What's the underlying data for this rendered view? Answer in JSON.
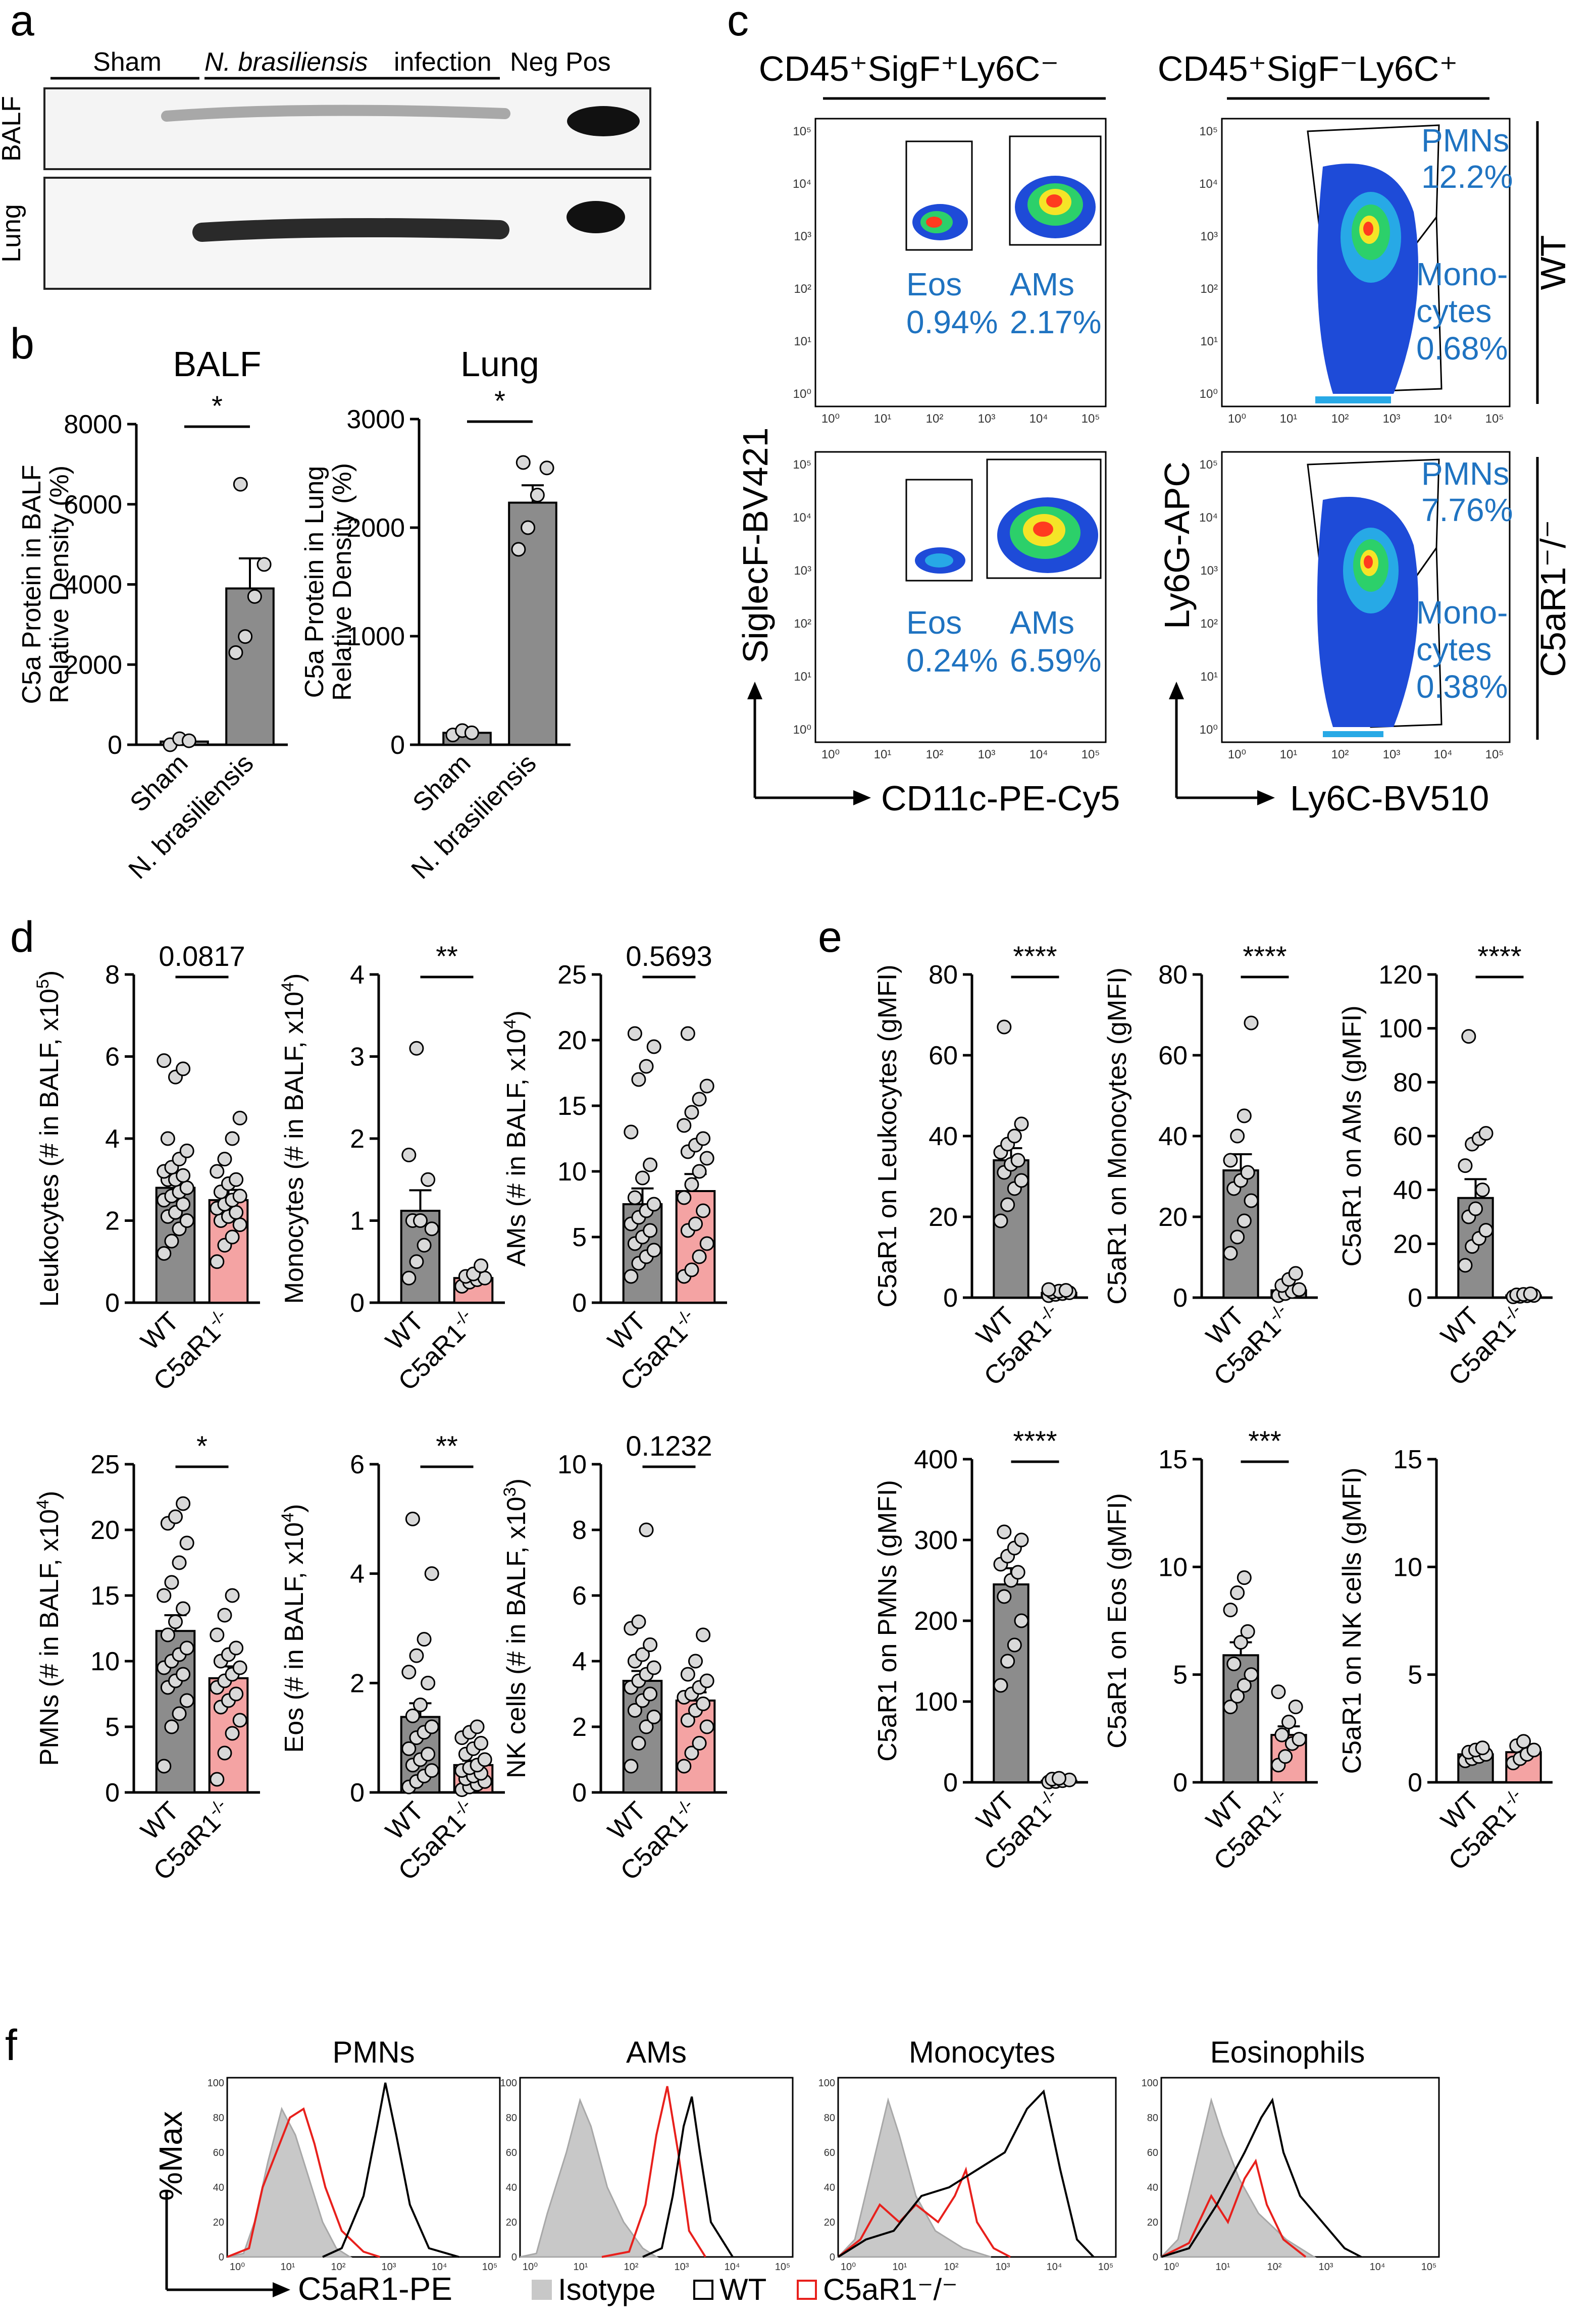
{
  "panels": {
    "a": "a",
    "b": "b",
    "c": "c",
    "d": "d",
    "e": "e",
    "f": "f"
  },
  "panel_a": {
    "groups": [
      "Sham",
      "N. brasiliensis",
      "infection",
      "Neg",
      "Pos"
    ],
    "rows": [
      "BALF",
      "Lung"
    ]
  },
  "chart_data": [
    {
      "id": "b-balf",
      "type": "bar",
      "title": "BALF",
      "categories": [
        "Sham",
        "N. brasiliensis"
      ],
      "values": [
        80,
        3900
      ],
      "errors": [
        60,
        750
      ],
      "points": [
        [
          0,
          150,
          100
        ],
        [
          2300,
          2700,
          3700,
          4500,
          6500
        ]
      ],
      "ylabel_lines": [
        "C5a Protein in BALF",
        "Relative Density (%)"
      ],
      "ylim": [
        0,
        8000
      ],
      "yticks": [
        "0",
        "2000",
        "4000",
        "6000",
        "8000"
      ],
      "sig": "*",
      "bar_colors": [
        "#8c8c8c",
        "#8c8c8c"
      ]
    },
    {
      "id": "b-lung",
      "type": "bar",
      "title": "Lung",
      "categories": [
        "Sham",
        "N. brasiliensis"
      ],
      "values": [
        110,
        2230
      ],
      "errors": [
        20,
        160
      ],
      "points": [
        [
          90,
          130,
          110
        ],
        [
          1800,
          2000,
          2300,
          2550,
          2600
        ]
      ],
      "ylabel_lines": [
        "C5a Protein in Lung",
        "Relative Density (%)"
      ],
      "ylim": [
        0,
        3000
      ],
      "yticks": [
        "0",
        "1000",
        "2000",
        "3000"
      ],
      "sig": "*",
      "bar_colors": [
        "#8c8c8c",
        "#8c8c8c"
      ]
    },
    {
      "id": "d-leuk",
      "type": "bar",
      "categories": [
        "WT",
        "C5aR1-/-"
      ],
      "values": [
        2.8,
        2.5
      ],
      "errors": [
        0.3,
        0.25
      ],
      "points": [
        [
          1.2,
          1.5,
          1.8,
          2.0,
          2.1,
          2.2,
          2.4,
          2.5,
          2.6,
          2.7,
          2.8,
          3.0,
          3.0,
          3.1,
          3.2,
          3.3,
          3.5,
          3.7,
          4.0,
          5.5,
          5.7,
          5.9
        ],
        [
          1.0,
          1.4,
          1.6,
          1.9,
          2.0,
          2.1,
          2.2,
          2.3,
          2.4,
          2.5,
          2.6,
          2.7,
          2.9,
          3.0,
          3.2,
          3.5,
          4.0,
          4.5
        ]
      ],
      "ylabel": "Leukocytes (# in BALF, x10",
      "ylabel_sup": "5",
      "ylabel_end": ")",
      "ylim": [
        0,
        8
      ],
      "yticks": [
        "0",
        "2",
        "4",
        "6",
        "8"
      ],
      "sig": "0.0817",
      "bar_colors": [
        "#8c8c8c",
        "#f4a3a3"
      ]
    },
    {
      "id": "d-mono",
      "type": "bar",
      "categories": [
        "WT",
        "C5aR1-/-"
      ],
      "values": [
        1.12,
        0.3
      ],
      "errors": [
        0.25,
        0.05
      ],
      "points": [
        [
          0.3,
          0.5,
          0.7,
          0.9,
          1.0,
          1.0,
          1.5,
          1.8,
          3.1
        ],
        [
          0.2,
          0.25,
          0.28,
          0.3,
          0.32,
          0.35,
          0.45
        ]
      ],
      "ylabel": "Monocytes (# in BALF, x10",
      "ylabel_sup": "4",
      "ylabel_end": ")",
      "ylim": [
        0,
        4
      ],
      "yticks": [
        "0",
        "1",
        "2",
        "3",
        "4"
      ],
      "sig": "**",
      "bar_colors": [
        "#8c8c8c",
        "#f4a3a3"
      ]
    },
    {
      "id": "d-ams",
      "type": "bar",
      "categories": [
        "WT",
        "C5aR1-/-"
      ],
      "values": [
        7.5,
        8.5
      ],
      "errors": [
        1.2,
        1.3
      ],
      "points": [
        [
          2.0,
          3.0,
          3.5,
          4.0,
          4.5,
          5.0,
          5.5,
          6.0,
          6.5,
          7.0,
          7.5,
          8.0,
          9.5,
          10.5,
          13.0,
          17.0,
          18.0,
          19.5,
          20.5
        ],
        [
          2.0,
          2.5,
          3.5,
          4.5,
          5.5,
          6.0,
          7.0,
          8.0,
          9.0,
          10.0,
          11.0,
          11.5,
          12.0,
          12.5,
          13.5,
          14.5,
          15.5,
          16.5,
          20.5
        ]
      ],
      "ylabel": "AMs (# in BALF, x10",
      "ylabel_sup": "4",
      "ylabel_end": ")",
      "ylim": [
        0,
        25
      ],
      "yticks": [
        "0",
        "5",
        "10",
        "15",
        "20",
        "25"
      ],
      "sig": "0.5693",
      "bar_colors": [
        "#8c8c8c",
        "#f4a3a3"
      ]
    },
    {
      "id": "d-pmn",
      "type": "bar",
      "categories": [
        "WT",
        "C5aR1-/-"
      ],
      "values": [
        12.3,
        8.7
      ],
      "errors": [
        1.2,
        0.9
      ],
      "points": [
        [
          2.0,
          5.0,
          6.0,
          7.0,
          8.0,
          8.5,
          9.0,
          9.5,
          10.0,
          10.5,
          11.0,
          12.0,
          13.0,
          14.0,
          15.0,
          16.0,
          17.5,
          19.0,
          20.5,
          21.0,
          22.0
        ],
        [
          1.0,
          3.0,
          4.5,
          5.5,
          6.5,
          7.0,
          7.5,
          8.0,
          8.5,
          9.0,
          9.5,
          10.0,
          10.5,
          11.0,
          12.0,
          13.5,
          15.0
        ]
      ],
      "ylabel": "PMNs (# in BALF, x10",
      "ylabel_sup": "4",
      "ylabel_end": ")",
      "ylim": [
        0,
        25
      ],
      "yticks": [
        "0",
        "5",
        "10",
        "15",
        "20",
        "25"
      ],
      "sig": "*",
      "bar_colors": [
        "#8c8c8c",
        "#f4a3a3"
      ]
    },
    {
      "id": "d-eos",
      "type": "bar",
      "categories": [
        "WT",
        "C5aR1-/-"
      ],
      "values": [
        1.38,
        0.5
      ],
      "errors": [
        0.25,
        0.08
      ],
      "points": [
        [
          0.1,
          0.2,
          0.3,
          0.4,
          0.5,
          0.6,
          0.7,
          0.8,
          1.0,
          1.1,
          1.2,
          1.4,
          1.6,
          2.0,
          2.2,
          2.5,
          2.8,
          4.0,
          5.0
        ],
        [
          0.05,
          0.1,
          0.15,
          0.2,
          0.25,
          0.3,
          0.35,
          0.4,
          0.45,
          0.5,
          0.6,
          0.7,
          0.8,
          0.9,
          1.0,
          1.1,
          1.2
        ]
      ],
      "ylabel": "Eos (# in BALF, x10",
      "ylabel_sup": "4",
      "ylabel_end": ")",
      "ylim": [
        0,
        6
      ],
      "yticks": [
        "0",
        "2",
        "4",
        "6"
      ],
      "sig": "**",
      "bar_colors": [
        "#8c8c8c",
        "#f4a3a3"
      ]
    },
    {
      "id": "d-nk",
      "type": "bar",
      "categories": [
        "WT",
        "C5aR1-/-"
      ],
      "values": [
        3.4,
        2.8
      ],
      "errors": [
        0.3,
        0.25
      ],
      "points": [
        [
          0.8,
          1.5,
          2.0,
          2.3,
          2.5,
          2.8,
          3.0,
          3.2,
          3.4,
          3.6,
          3.8,
          4.0,
          4.2,
          4.5,
          5.0,
          5.2,
          8.0
        ],
        [
          0.8,
          1.2,
          1.5,
          2.0,
          2.2,
          2.5,
          2.7,
          2.9,
          3.0,
          3.2,
          3.4,
          3.6,
          4.0,
          4.8
        ]
      ],
      "ylabel": "NK cells (# in BALF, x10",
      "ylabel_sup": "3",
      "ylabel_end": ")",
      "ylim": [
        0,
        10
      ],
      "yticks": [
        "0",
        "2",
        "4",
        "6",
        "8",
        "10"
      ],
      "sig": "0.1232",
      "bar_colors": [
        "#8c8c8c",
        "#f4a3a3"
      ]
    },
    {
      "id": "e-leuk",
      "type": "bar",
      "categories": [
        "WT",
        "C5aR1-/-"
      ],
      "values": [
        34,
        1.2
      ],
      "errors": [
        3,
        0.3
      ],
      "points": [
        [
          19,
          23,
          27,
          29,
          31,
          33,
          34,
          36,
          38,
          40,
          43,
          67
        ],
        [
          0.5,
          0.8,
          1.0,
          1.2,
          1.4,
          1.6,
          1.8,
          2.0
        ]
      ],
      "ylabel": "C5aR1 on Leukocytes (gMFI)",
      "ylim": [
        0,
        80
      ],
      "yticks": [
        "0",
        "20",
        "40",
        "60",
        "80"
      ],
      "sig": "****",
      "bar_colors": [
        "#8c8c8c",
        "#8c8c8c"
      ]
    },
    {
      "id": "e-mono",
      "type": "bar",
      "categories": [
        "WT",
        "C5aR1-/-"
      ],
      "values": [
        31.5,
        1.8
      ],
      "errors": [
        4,
        0.4
      ],
      "points": [
        [
          11,
          15,
          19,
          24,
          27,
          29,
          31,
          34,
          40,
          45,
          68
        ],
        [
          0.5,
          1.0,
          1.5,
          2.0,
          3.0,
          4.5,
          6.0
        ]
      ],
      "ylabel": "C5aR1 on Monocytes (gMFI)",
      "ylim": [
        0,
        80
      ],
      "yticks": [
        "0",
        "20",
        "40",
        "60",
        "80"
      ],
      "sig": "****",
      "bar_colors": [
        "#8c8c8c",
        "#8c8c8c"
      ]
    },
    {
      "id": "e-ams",
      "type": "bar",
      "categories": [
        "WT",
        "C5aR1-/-"
      ],
      "values": [
        37,
        0.8
      ],
      "errors": [
        7,
        0.2
      ],
      "points": [
        [
          12,
          19,
          22,
          25,
          30,
          33,
          40,
          49,
          57,
          59,
          61,
          97
        ],
        [
          0.3,
          0.5,
          0.7,
          0.8,
          1.0,
          1.2,
          1.4
        ]
      ],
      "ylabel": "C5aR1 on AMs (gMFI)",
      "ylim": [
        0,
        120
      ],
      "yticks": [
        "0",
        "20",
        "40",
        "60",
        "80",
        "100",
        "120"
      ],
      "sig": "****",
      "bar_colors": [
        "#8c8c8c",
        "#8c8c8c"
      ]
    },
    {
      "id": "e-pmn",
      "type": "bar",
      "categories": [
        "WT",
        "C5aR1-/-"
      ],
      "values": [
        245,
        2
      ],
      "errors": [
        20,
        1
      ],
      "points": [
        [
          120,
          150,
          170,
          200,
          230,
          250,
          260,
          270,
          280,
          290,
          300,
          310
        ],
        [
          0.5,
          1,
          2,
          3,
          4,
          5
        ]
      ],
      "ylabel": "C5aR1 on PMNs (gMFI)",
      "ylim": [
        0,
        400
      ],
      "yticks": [
        "0",
        "100",
        "200",
        "300",
        "400"
      ],
      "sig": "****",
      "bar_colors": [
        "#8c8c8c",
        "#8c8c8c"
      ]
    },
    {
      "id": "e-eos",
      "type": "bar",
      "categories": [
        "WT",
        "C5aR1-/-"
      ],
      "values": [
        5.9,
        2.2
      ],
      "errors": [
        0.6,
        0.4
      ],
      "points": [
        [
          3.5,
          4.0,
          4.5,
          5.0,
          5.5,
          6.5,
          7.0,
          8.0,
          8.8,
          9.5
        ],
        [
          0.8,
          1.2,
          1.8,
          2.0,
          2.2,
          2.8,
          3.5,
          4.2
        ]
      ],
      "ylabel": "C5aR1 on Eos (gMFI)",
      "ylim": [
        0,
        15
      ],
      "yticks": [
        "0",
        "5",
        "10",
        "15"
      ],
      "sig": "***",
      "bar_colors": [
        "#8c8c8c",
        "#f4a3a3"
      ]
    },
    {
      "id": "e-nk",
      "type": "bar",
      "categories": [
        "WT",
        "C5aR1-/-"
      ],
      "values": [
        1.3,
        1.4
      ],
      "errors": [
        0.1,
        0.15
      ],
      "points": [
        [
          1.0,
          1.1,
          1.2,
          1.3,
          1.4,
          1.5,
          1.6
        ],
        [
          0.9,
          1.1,
          1.3,
          1.5,
          1.7,
          1.9
        ]
      ],
      "ylabel": "C5aR1 on NK cells (gMFI)",
      "ylim": [
        0,
        15
      ],
      "yticks": [
        "0",
        "5",
        "10",
        "15"
      ],
      "sig": "",
      "bar_colors": [
        "#8c8c8c",
        "#f4a3a3"
      ]
    }
  ],
  "panel_c": {
    "col_titles": [
      "CD45⁺SigF⁺Ly6C⁻",
      "CD45⁺SigF⁻Ly6C⁺"
    ],
    "row_labels": [
      "WT",
      "C5aR1⁻/⁻"
    ],
    "xlabel_left": "CD11c-PE-Cy5",
    "ylabel_left": "SiglecF-BV421",
    "xlabel_right": "Ly6C-BV510",
    "ylabel_right": "Ly6G-APC",
    "wt": {
      "eos_label": "Eos",
      "eos_pct": "0.94%",
      "ams_label": "AMs",
      "ams_pct": "2.17%",
      "pmn_label": "PMNs",
      "pmn_pct": "12.2%",
      "mono_label1": "Mono-",
      "mono_label2": "cytes",
      "mono_pct": "0.68%"
    },
    "ko": {
      "eos_label": "Eos",
      "eos_pct": "0.24%",
      "ams_label": "AMs",
      "ams_pct": "6.59%",
      "pmn_label": "PMNs",
      "pmn_pct": "7.76%",
      "mono_label1": "Mono-",
      "mono_label2": "cytes",
      "mono_pct": "0.38%"
    },
    "ticks": [
      "10⁰",
      "10¹",
      "10²",
      "10³",
      "10⁴",
      "10⁵"
    ]
  },
  "panel_f": {
    "titles": [
      "PMNs",
      "AMs",
      "Monocytes",
      "Eosinophils"
    ],
    "ylabel": "%Max",
    "xlabel": "C5aR1-PE",
    "legend": [
      "Isotype",
      "WT",
      "C5aR1⁻/⁻"
    ],
    "yticks": [
      "0",
      "20",
      "40",
      "60",
      "80",
      "100"
    ],
    "xticks": [
      "10⁰",
      "10¹",
      "10²",
      "10³",
      "10⁴",
      "10⁵"
    ],
    "colors": {
      "isotype": "#c8c8c8",
      "wt": "#000000",
      "ko": "#e8201c"
    }
  },
  "colors": {
    "wt_bar": "#8c8c8c",
    "ko_bar": "#f4a3a3",
    "label_blue": "#1f73c1"
  }
}
